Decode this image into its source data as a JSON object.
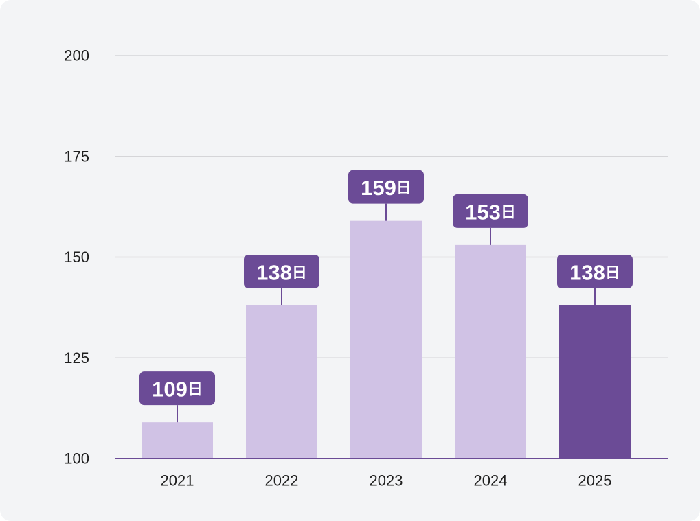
{
  "chart_data": {
    "type": "bar",
    "title": "",
    "xlabel": "",
    "ylabel": "",
    "categories": [
      "2021",
      "2022",
      "2023",
      "2024",
      "2025"
    ],
    "values": [
      109,
      138,
      159,
      153,
      138
    ],
    "data_labels": [
      "109",
      "138",
      "159",
      "153",
      "138"
    ],
    "data_label_unit": "日",
    "ylim": [
      100,
      200
    ],
    "yticks": [
      100,
      125,
      150,
      175,
      200
    ],
    "ytick_labels": [
      "100",
      "125",
      "150",
      "175",
      "200"
    ],
    "grid": true,
    "legend": "none",
    "highlight_index": 4
  },
  "colors": {
    "background": "#f3f4f6",
    "bar": "#d0c2e5",
    "bar_highlight": "#6b4b96",
    "label_bg": "#6b4b96",
    "label_text": "#ffffff",
    "grid": "#d5d5d8",
    "axis": "#6b4b96",
    "text": "#1f1f1f"
  }
}
